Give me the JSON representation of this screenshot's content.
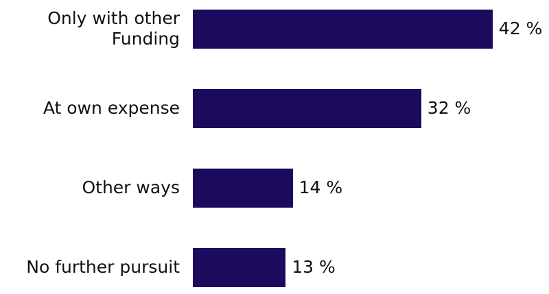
{
  "chart_data": {
    "type": "bar",
    "orientation": "horizontal",
    "categories": [
      "Only with other Funding",
      "At own expense",
      "Other ways",
      "No further pursuit"
    ],
    "values": [
      42,
      32,
      14,
      13
    ],
    "value_labels": [
      "42 %",
      "32 %",
      "14 %",
      "13 %"
    ],
    "color": "#1c0a5e"
  }
}
